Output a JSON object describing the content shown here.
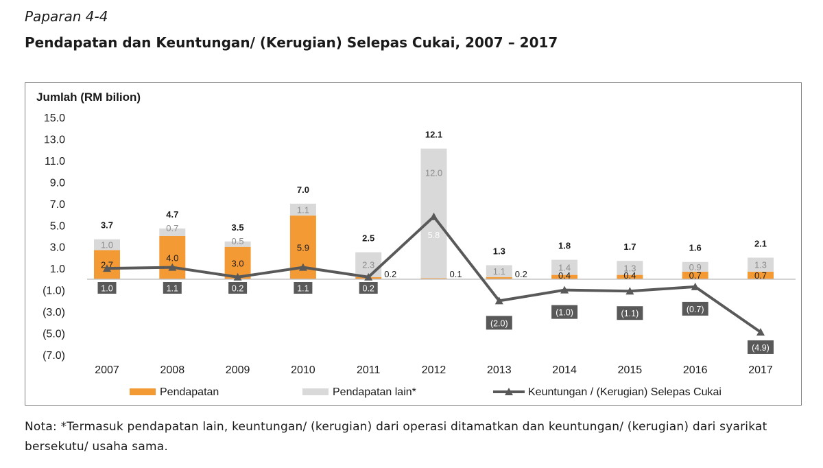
{
  "figure": {
    "label": "Paparan 4-4",
    "title": "Pendapatan dan Keuntungan/ (Kerugian) Selepas Cukai, 2007 – 2017"
  },
  "note": "Nota: *Termasuk pendapatan lain, keuntungan/ (kerugian) dari operasi ditamatkan dan keuntungan/ (kerugian) dari syarikat bersekutu/ usaha sama.",
  "colors": {
    "pendapatan": "#f39a35",
    "pendapatan_lain": "#d9d9d9",
    "line": "#595959",
    "axis": "#bfbfbf"
  },
  "chart_data": {
    "type": "bar",
    "stacked": true,
    "ylabel": "Jumlah (RM bilion)",
    "ylim": [
      -7,
      15
    ],
    "yticks": [
      "15.0",
      "13.0",
      "11.0",
      "9.0",
      "7.0",
      "5.0",
      "3.0",
      "1.0",
      "(1.0)",
      "(3.0)",
      "(5.0)",
      "(7.0)"
    ],
    "categories": [
      "2007",
      "2008",
      "2009",
      "2010",
      "2011",
      "2012",
      "2013",
      "2014",
      "2015",
      "2016",
      "2017"
    ],
    "series": [
      {
        "name": "Pendapatan",
        "kind": "bar",
        "values": [
          2.7,
          4.0,
          3.0,
          5.9,
          0.2,
          0.1,
          0.2,
          0.4,
          0.4,
          0.7,
          0.7
        ],
        "labels": [
          "2.7",
          "4.0",
          "3.0",
          "5.9",
          "0.2",
          "0.1",
          "0.2",
          "0.4",
          "0.4",
          "0.7",
          "0.7"
        ]
      },
      {
        "name": "Pendapatan lain*",
        "kind": "bar",
        "values": [
          1.0,
          0.7,
          0.5,
          1.1,
          2.3,
          12.0,
          1.1,
          1.4,
          1.3,
          0.9,
          1.3
        ],
        "labels": [
          "1.0",
          "0.7",
          "0.5",
          "1.1",
          "2.3",
          "12.0",
          "1.1",
          "1.4",
          "1.3",
          "0.9",
          "1.3"
        ]
      },
      {
        "name": "Keuntungan / (Kerugian) Selepas Cukai",
        "kind": "line",
        "values": [
          1.0,
          1.1,
          0.2,
          1.1,
          0.2,
          5.8,
          -2.0,
          -1.0,
          -1.1,
          -0.7,
          -4.9
        ],
        "labels": [
          "1.0",
          "1.1",
          "0.2",
          "1.1",
          "0.2",
          "5.8",
          "(2.0)",
          "(1.0)",
          "(1.1)",
          "(0.7)",
          "(4.9)"
        ]
      }
    ],
    "totals": [
      "3.7",
      "4.7",
      "3.5",
      "7.0",
      "2.5",
      "12.1",
      "1.3",
      "1.8",
      "1.7",
      "1.6",
      "2.1"
    ],
    "legend_position": "bottom",
    "grid": false
  }
}
